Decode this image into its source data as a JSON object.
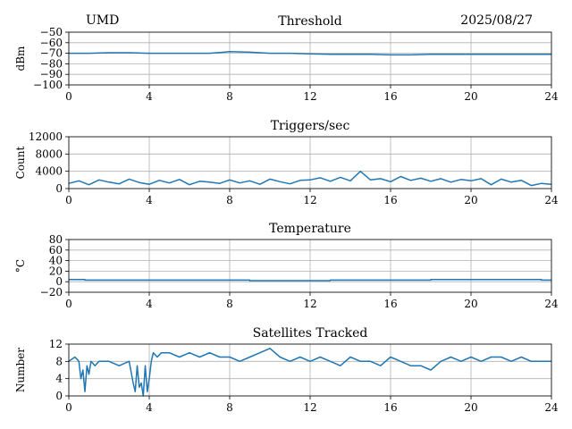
{
  "header": {
    "site": "UMD",
    "date": "2025/08/27"
  },
  "colors": {
    "series": "#1f77b4",
    "grid": "#b0b0b0"
  },
  "chart_data": [
    {
      "id": "threshold",
      "type": "line",
      "title": "Threshold",
      "ylabel": "dBm",
      "xlim": [
        0,
        24
      ],
      "ylim": [
        -100,
        -50
      ],
      "xticks": [
        0,
        4,
        8,
        12,
        16,
        20,
        24
      ],
      "yticks": [
        -100,
        -90,
        -80,
        -70,
        -60,
        -50
      ],
      "ytick_labels": [
        "−100",
        "−90",
        "−80",
        "−70",
        "−60",
        "−50"
      ],
      "grid": true,
      "x": [
        0,
        1,
        2,
        3,
        4,
        5,
        6,
        7,
        8,
        9,
        10,
        11,
        12,
        13,
        14,
        15,
        16,
        17,
        18,
        19,
        20,
        21,
        22,
        23,
        24
      ],
      "y": [
        -70,
        -70,
        -69.5,
        -69.5,
        -70,
        -70,
        -70,
        -70,
        -68.5,
        -69,
        -70,
        -70,
        -70.5,
        -71,
        -71,
        -71,
        -71.5,
        -71.5,
        -71,
        -71,
        -71,
        -71,
        -71,
        -71,
        -71
      ]
    },
    {
      "id": "triggers",
      "type": "line",
      "title": "Triggers/sec",
      "ylabel": "Count",
      "xlim": [
        0,
        24
      ],
      "ylim": [
        0,
        12000
      ],
      "xticks": [
        0,
        4,
        8,
        12,
        16,
        20,
        24
      ],
      "yticks": [
        0,
        4000,
        8000,
        12000
      ],
      "ytick_labels": [
        "0",
        "4000",
        "8000",
        "12000"
      ],
      "grid": true,
      "x": [
        0,
        0.5,
        1,
        1.5,
        2,
        2.5,
        3,
        3.5,
        4,
        4.5,
        5,
        5.5,
        6,
        6.5,
        7,
        7.5,
        8,
        8.5,
        9,
        9.5,
        10,
        10.5,
        11,
        11.5,
        12,
        12.5,
        13,
        13.5,
        14,
        14.5,
        15,
        15.5,
        16,
        16.5,
        17,
        17.5,
        18,
        18.5,
        19,
        19.5,
        20,
        20.5,
        21,
        21.5,
        22,
        22.5,
        23,
        23.5,
        24
      ],
      "y": [
        1200,
        1800,
        900,
        2000,
        1500,
        1100,
        2200,
        1400,
        1000,
        1900,
        1300,
        2100,
        900,
        1700,
        1500,
        1200,
        2000,
        1300,
        1800,
        1000,
        2200,
        1600,
        1100,
        1900,
        2000,
        2500,
        1700,
        2600,
        1800,
        4000,
        2000,
        2300,
        1600,
        2800,
        1900,
        2400,
        1700,
        2300,
        1500,
        2100,
        1800,
        2300,
        900,
        2200,
        1500,
        1900,
        700,
        1200,
        1000
      ]
    },
    {
      "id": "temperature",
      "type": "line",
      "title": "Temperature",
      "ylabel": "°C",
      "xlim": [
        0,
        24
      ],
      "ylim": [
        -20,
        80
      ],
      "xticks": [
        0,
        4,
        8,
        12,
        16,
        20,
        24
      ],
      "yticks": [
        -20,
        0,
        20,
        40,
        60,
        80
      ],
      "ytick_labels": [
        "−20",
        "0",
        "20",
        "40",
        "60",
        "80"
      ],
      "grid": true,
      "x": [
        0,
        0.8,
        0.8,
        9,
        9,
        13,
        13,
        18,
        18,
        23.5,
        23.5,
        24
      ],
      "y": [
        4,
        4,
        3,
        3,
        2,
        2,
        3,
        3,
        4,
        4,
        3,
        3
      ]
    },
    {
      "id": "satellites",
      "type": "line",
      "title": "Satellites Tracked",
      "ylabel": "Number",
      "xlim": [
        0,
        24
      ],
      "ylim": [
        0,
        12
      ],
      "xticks": [
        0,
        4,
        8,
        12,
        16,
        20,
        24
      ],
      "yticks": [
        0,
        4,
        8,
        12
      ],
      "ytick_labels": [
        "0",
        "4",
        "8",
        "12"
      ],
      "grid": true,
      "x": [
        0,
        0.3,
        0.5,
        0.6,
        0.7,
        0.8,
        0.9,
        1.0,
        1.1,
        1.3,
        1.5,
        2.0,
        2.5,
        3.0,
        3.2,
        3.3,
        3.4,
        3.5,
        3.6,
        3.7,
        3.8,
        3.9,
        4.0,
        4.1,
        4.2,
        4.4,
        4.6,
        5.0,
        5.5,
        6.0,
        6.5,
        7.0,
        7.5,
        8.0,
        8.5,
        9.0,
        9.5,
        10.0,
        10.5,
        11.0,
        11.5,
        12.0,
        12.5,
        13.0,
        13.5,
        14.0,
        14.5,
        15.0,
        15.5,
        16.0,
        16.5,
        17.0,
        17.5,
        18.0,
        18.5,
        19.0,
        19.5,
        20.0,
        20.5,
        21.0,
        21.5,
        22.0,
        22.5,
        23.0,
        23.5,
        24.0
      ],
      "y": [
        8,
        9,
        8,
        4,
        6,
        1,
        7,
        5,
        8,
        7,
        8,
        8,
        7,
        8,
        3,
        1,
        7,
        2,
        3,
        0,
        7,
        1,
        4,
        8,
        10,
        9,
        10,
        10,
        9,
        10,
        9,
        10,
        9,
        9,
        8,
        9,
        10,
        11,
        9,
        8,
        9,
        8,
        9,
        8,
        7,
        9,
        8,
        8,
        7,
        9,
        8,
        7,
        7,
        6,
        8,
        9,
        8,
        9,
        8,
        9,
        9,
        8,
        9,
        8,
        8,
        8
      ]
    }
  ]
}
